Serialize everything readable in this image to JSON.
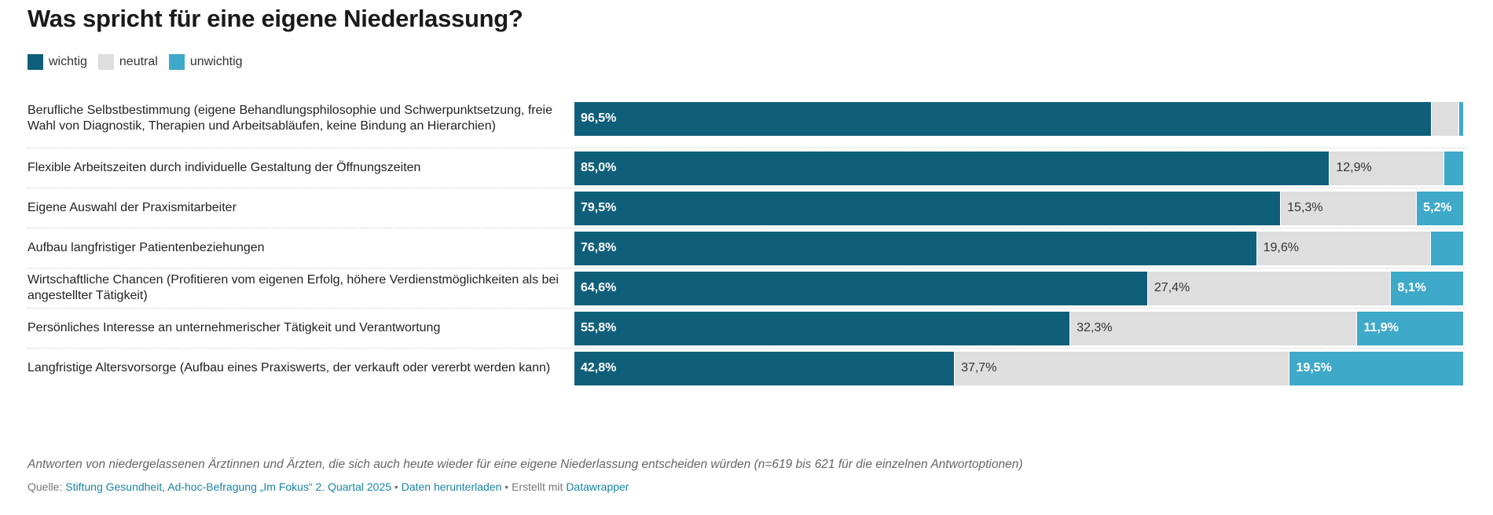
{
  "chart_data": {
    "type": "bar",
    "orientation": "horizontal",
    "stacked": true,
    "title": "Was spricht für eine eigene Niederlassung?",
    "xlabel": "",
    "ylabel": "",
    "xlim": [
      0,
      100
    ],
    "grid": false,
    "legend": {
      "position": "top-left",
      "entries": [
        {
          "key": "wichtig",
          "label": "wichtig",
          "color": "#0f5f7a"
        },
        {
          "key": "neutral",
          "label": "neutral",
          "color": "#dedede"
        },
        {
          "key": "unwichtig",
          "label": "unwichtig",
          "color": "#3fa9c9"
        }
      ]
    },
    "categories": [
      "Berufliche Selbstbestimmung (eigene Behandlungsphilosophie und Schwerpunktsetzung, freie Wahl von Diagnostik, Therapien und Arbeitsabläufen, keine Bindung an Hierarchien)",
      "Flexible Arbeitszeiten durch individuelle Gestaltung der Öffnungszeiten",
      "Eigene Auswahl der Praxismitarbeiter",
      "Aufbau langfristiger Patientenbeziehungen",
      "Wirtschaftliche Chancen (Profitieren vom eigenen Erfolg, höhere Verdienstmöglichkeiten als bei angestellter Tätigkeit)",
      "Persönliches Interesse an unternehmerischer Tätigkeit und Verantwortung",
      "Langfristige Altersvorsorge (Aufbau eines Praxiswerts, der verkauft oder vererbt werden kann)"
    ],
    "series": [
      {
        "name": "wichtig",
        "values": [
          96.5,
          85.0,
          79.5,
          76.8,
          64.6,
          55.8,
          42.8
        ],
        "labels": [
          "96,5%",
          "85,0%",
          "79,5%",
          "76,8%",
          "64,6%",
          "55,8%",
          "42,8%"
        ]
      },
      {
        "name": "neutral",
        "values": [
          3.1,
          12.9,
          15.3,
          19.6,
          27.4,
          32.3,
          37.7
        ],
        "labels": [
          "",
          "12,9%",
          "15,3%",
          "19,6%",
          "27,4%",
          "32,3%",
          "37,7%"
        ]
      },
      {
        "name": "unwichtig",
        "values": [
          0.4,
          2.1,
          5.2,
          3.6,
          8.1,
          11.9,
          19.5
        ],
        "labels": [
          "",
          "",
          "5,2%",
          "",
          "8,1%",
          "11,9%",
          "19,5%"
        ]
      }
    ],
    "notes": "Antworten von niedergelassenen Ärztinnen und Ärzten, die sich auch heute wieder für eine eigene Niederlassung entscheiden würden (n=619 bis 621 für die einzelnen Antwortoptionen)"
  },
  "footer": {
    "source_prefix": "Quelle: ",
    "source_link": "Stiftung Gesundheit, Ad-hoc-Befragung „Im Fokus“ 2. Quartal 2025",
    "sep1": " • ",
    "download_link": "Daten herunterladen",
    "sep2": " • Erstellt mit ",
    "datawrapper_link": "Datawrapper"
  }
}
